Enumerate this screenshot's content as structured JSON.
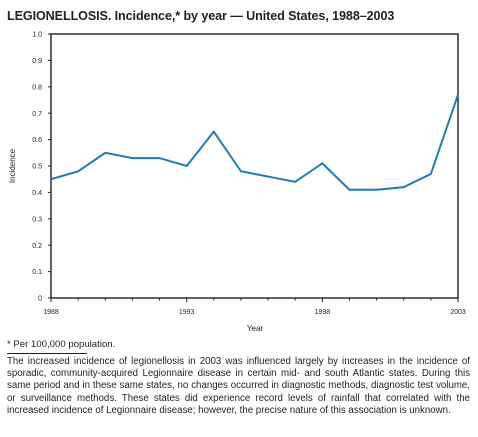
{
  "title": "LEGIONELLOSIS. Incidence,* by year — United States, 1988–2003",
  "footnote": "* Per 100,000 population.",
  "note": "The increased incidence of legionellosis in 2003 was influenced largely by increases in the incidence of sporadic, community-acquired Legionnaire disease in certain mid- and south Atlantic states. During this same period and in these same states, no changes occurred in diagnostic methods, diagnostic test volume, or surveillance methods. These states did experience record levels of rainfall that correlated with the increased incidence of Legionnaire disease; however, the precise nature of this association is unknown.",
  "chart_data": {
    "type": "line",
    "title": "LEGIONELLOSIS. Incidence,* by year — United States, 1988–2003",
    "xlabel": "Year",
    "ylabel": "Incidence",
    "x": [
      1988,
      1989,
      1990,
      1991,
      1992,
      1993,
      1994,
      1995,
      1996,
      1997,
      1998,
      1999,
      2000,
      2001,
      2002,
      2003
    ],
    "series": [
      {
        "values": [
          0.45,
          0.48,
          0.55,
          0.53,
          0.53,
          0.5,
          0.63,
          0.48,
          0.46,
          0.44,
          0.51,
          0.41,
          0.41,
          0.42,
          0.47,
          0.77
        ]
      }
    ],
    "xlim": [
      1988,
      2003
    ],
    "ylim": [
      0,
      1.0
    ],
    "x_tick_labels": [
      "1988",
      "1993",
      "1998",
      "2003"
    ],
    "y_tick_labels": [
      "0",
      "0.1",
      "0.2",
      "0.3",
      "0.4",
      "0.5",
      "0.6",
      "0.7",
      "0.8",
      "0.9",
      "1.0"
    ],
    "line_color": "#1f7bb6",
    "grid": false,
    "legend": "none"
  }
}
